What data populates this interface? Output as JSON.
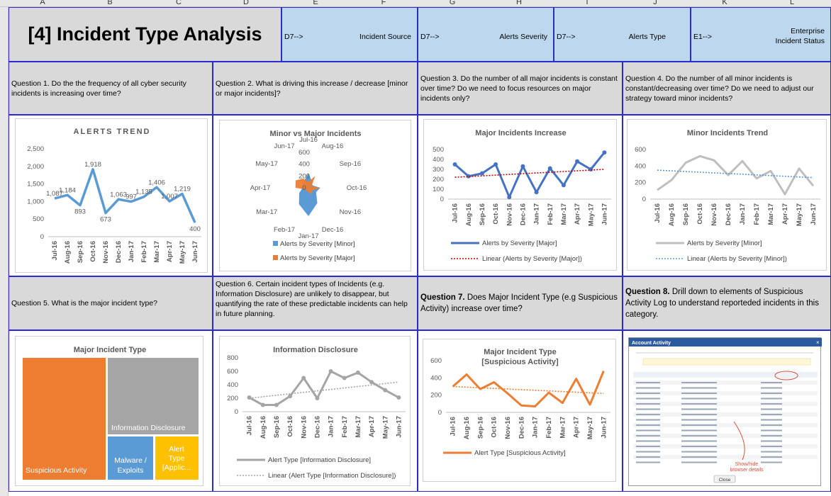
{
  "columns": [
    "A",
    "B",
    "C",
    "D",
    "E",
    "F",
    "G",
    "H",
    "I",
    "J",
    "K",
    "L"
  ],
  "title": "[4] Incident Type Analysis",
  "headers": [
    {
      "ref": "D7-->",
      "label": "Incident Source"
    },
    {
      "ref": "D7-->",
      "label": "Alerts Severity"
    },
    {
      "ref": "D7-->",
      "label": "Alerts Type"
    },
    {
      "ref": "E1-->",
      "label": "Enterprise Incident Status"
    }
  ],
  "questions": {
    "q1": "Question 1. Do the the frequency of all cyber security incidents is increasing over time?",
    "q2": "Question 2. What is driving this increase / decrease [minor or major incidents]?",
    "q3": "Question 3. Do the number of all major incidents is constant over time? Do we need to focus resources on major incidents only?",
    "q4": "Question 4. Do the number of all minor incidents is constant/decreasing over time? Do we need to adjust our strategy toward minor incidents?",
    "q5": "Question 5. What is the major incident type?",
    "q6": "Question 6. Certain incident types of Incidents (e.g. Information Disclosure) are unlikely to disappear, but quantifying the rate of these predictable incidents can help in future planning.",
    "q7_bold": "Question 7.",
    "q7_rest": " Does Major Incident Type (e.g Suspicious Activity) increase over time?",
    "q8_bold": "Question 8.",
    "q8_rest": " Drill down to elements of Suspicious Activity Log to understand reporteded incidents in this category."
  },
  "months": [
    "Jul-16",
    "Aug-16",
    "Sep-16",
    "Oct-16",
    "Nov-16",
    "Dec-16",
    "Jan-17",
    "Feb-17",
    "Mar-17",
    "Apr-17",
    "May-17",
    "Jun-17"
  ],
  "chart_data": [
    {
      "type": "line",
      "title": "ALERTS TREND",
      "yticks": [
        "0",
        "500",
        "1,000",
        "1,500",
        "2,000",
        "2,500"
      ],
      "ylim": [
        0,
        2500
      ],
      "series": [
        {
          "values": [
            1087,
            1184,
            893,
            1918,
            673,
            1063,
            997,
            1135,
            1406,
            1007,
            1219,
            400
          ],
          "labels": [
            "1,087",
            "1,184",
            "893",
            "1,918",
            "673",
            "1,063",
            "997",
            "1,135",
            "1,406",
            "1,007",
            "1,219",
            "400"
          ]
        }
      ]
    },
    {
      "type": "radar",
      "title": "Minor vs Major Incidents",
      "rticks": [
        "0",
        "200",
        "400",
        "600"
      ],
      "series": [
        {
          "name": "Alerts by Severity [Minor]",
          "color": "#5b9bd5",
          "values": [
            250,
            120,
            80,
            200,
            150,
            300,
            480,
            320,
            180,
            100,
            120,
            140
          ]
        },
        {
          "name": "Alerts by Severity [Major]",
          "color": "#ed7d31",
          "values": [
            100,
            230,
            60,
            200,
            80,
            120,
            80,
            60,
            60,
            220,
            250,
            180
          ]
        }
      ]
    },
    {
      "type": "line",
      "title": "Major Incidents Increase",
      "yticks": [
        "0",
        "50",
        "100",
        "150",
        "200",
        "250",
        "300",
        "350",
        "400",
        "450",
        "500"
      ],
      "ylim": [
        0,
        500
      ],
      "series": [
        {
          "name": "Alerts by Severity [Major]",
          "color": "#4472c4",
          "values": [
            350,
            230,
            260,
            350,
            20,
            330,
            70,
            310,
            140,
            380,
            300,
            470
          ]
        },
        {
          "name": "Linear (Alerts by Severity [Major])",
          "color": "#c00000",
          "values": [
            220,
            300
          ]
        }
      ]
    },
    {
      "type": "line",
      "title": "Minor Incidents Trend",
      "yticks": [
        "0",
        "200",
        "400",
        "600"
      ],
      "ylim": [
        0,
        600
      ],
      "series": [
        {
          "name": "Alerts by Severity [Minor]",
          "color": "#bfbfbf",
          "values": [
            110,
            230,
            440,
            520,
            470,
            290,
            460,
            250,
            340,
            60,
            370,
            160
          ]
        },
        {
          "name": "Linear (Alerts by Severity [Minor])",
          "color": "#5b9bd5",
          "values": [
            350,
            260
          ]
        }
      ]
    },
    {
      "type": "treemap",
      "title": "Major Incident Type",
      "items": [
        {
          "label": "Suspicious Activity",
          "color": "#ed7d31"
        },
        {
          "label": "Information Disclosure",
          "color": "#a5a5a5"
        },
        {
          "label": "Malware / Exploits",
          "color": "#5b9bd5"
        },
        {
          "label": "Alert Type [Applic...",
          "color": "#ffc000"
        }
      ]
    },
    {
      "type": "line",
      "title": "Information Disclosure",
      "yticks": [
        "0",
        "200",
        "400",
        "600",
        "800"
      ],
      "ylim": [
        0,
        800
      ],
      "series": [
        {
          "name": "Alert Type [Information Disclosure]",
          "color": "#a5a5a5",
          "values": [
            210,
            100,
            100,
            230,
            500,
            200,
            600,
            500,
            580,
            440,
            320,
            210
          ]
        },
        {
          "name": "Linear (Alert Type [Information Disclosure])",
          "color": "#a5a5a5",
          "values": [
            200,
            440
          ]
        }
      ]
    },
    {
      "type": "line",
      "title": "Major Incident Type",
      "subtitle": "[Suspicious Activity]",
      "yticks": [
        "0",
        "200",
        "400",
        "600"
      ],
      "ylim": [
        0,
        600
      ],
      "series": [
        {
          "name": "Alert Type [Suspicious Activity]",
          "color": "#ed7d31",
          "values": [
            300,
            440,
            270,
            350,
            220,
            80,
            70,
            230,
            110,
            390,
            90,
            480
          ]
        },
        {
          "name": "Linear",
          "color": "#ed7d31",
          "values": [
            300,
            220
          ]
        }
      ]
    }
  ],
  "screenshot": {
    "title": "Account Activity",
    "close_label": "Close",
    "annotation": "Show/hide browser details"
  }
}
